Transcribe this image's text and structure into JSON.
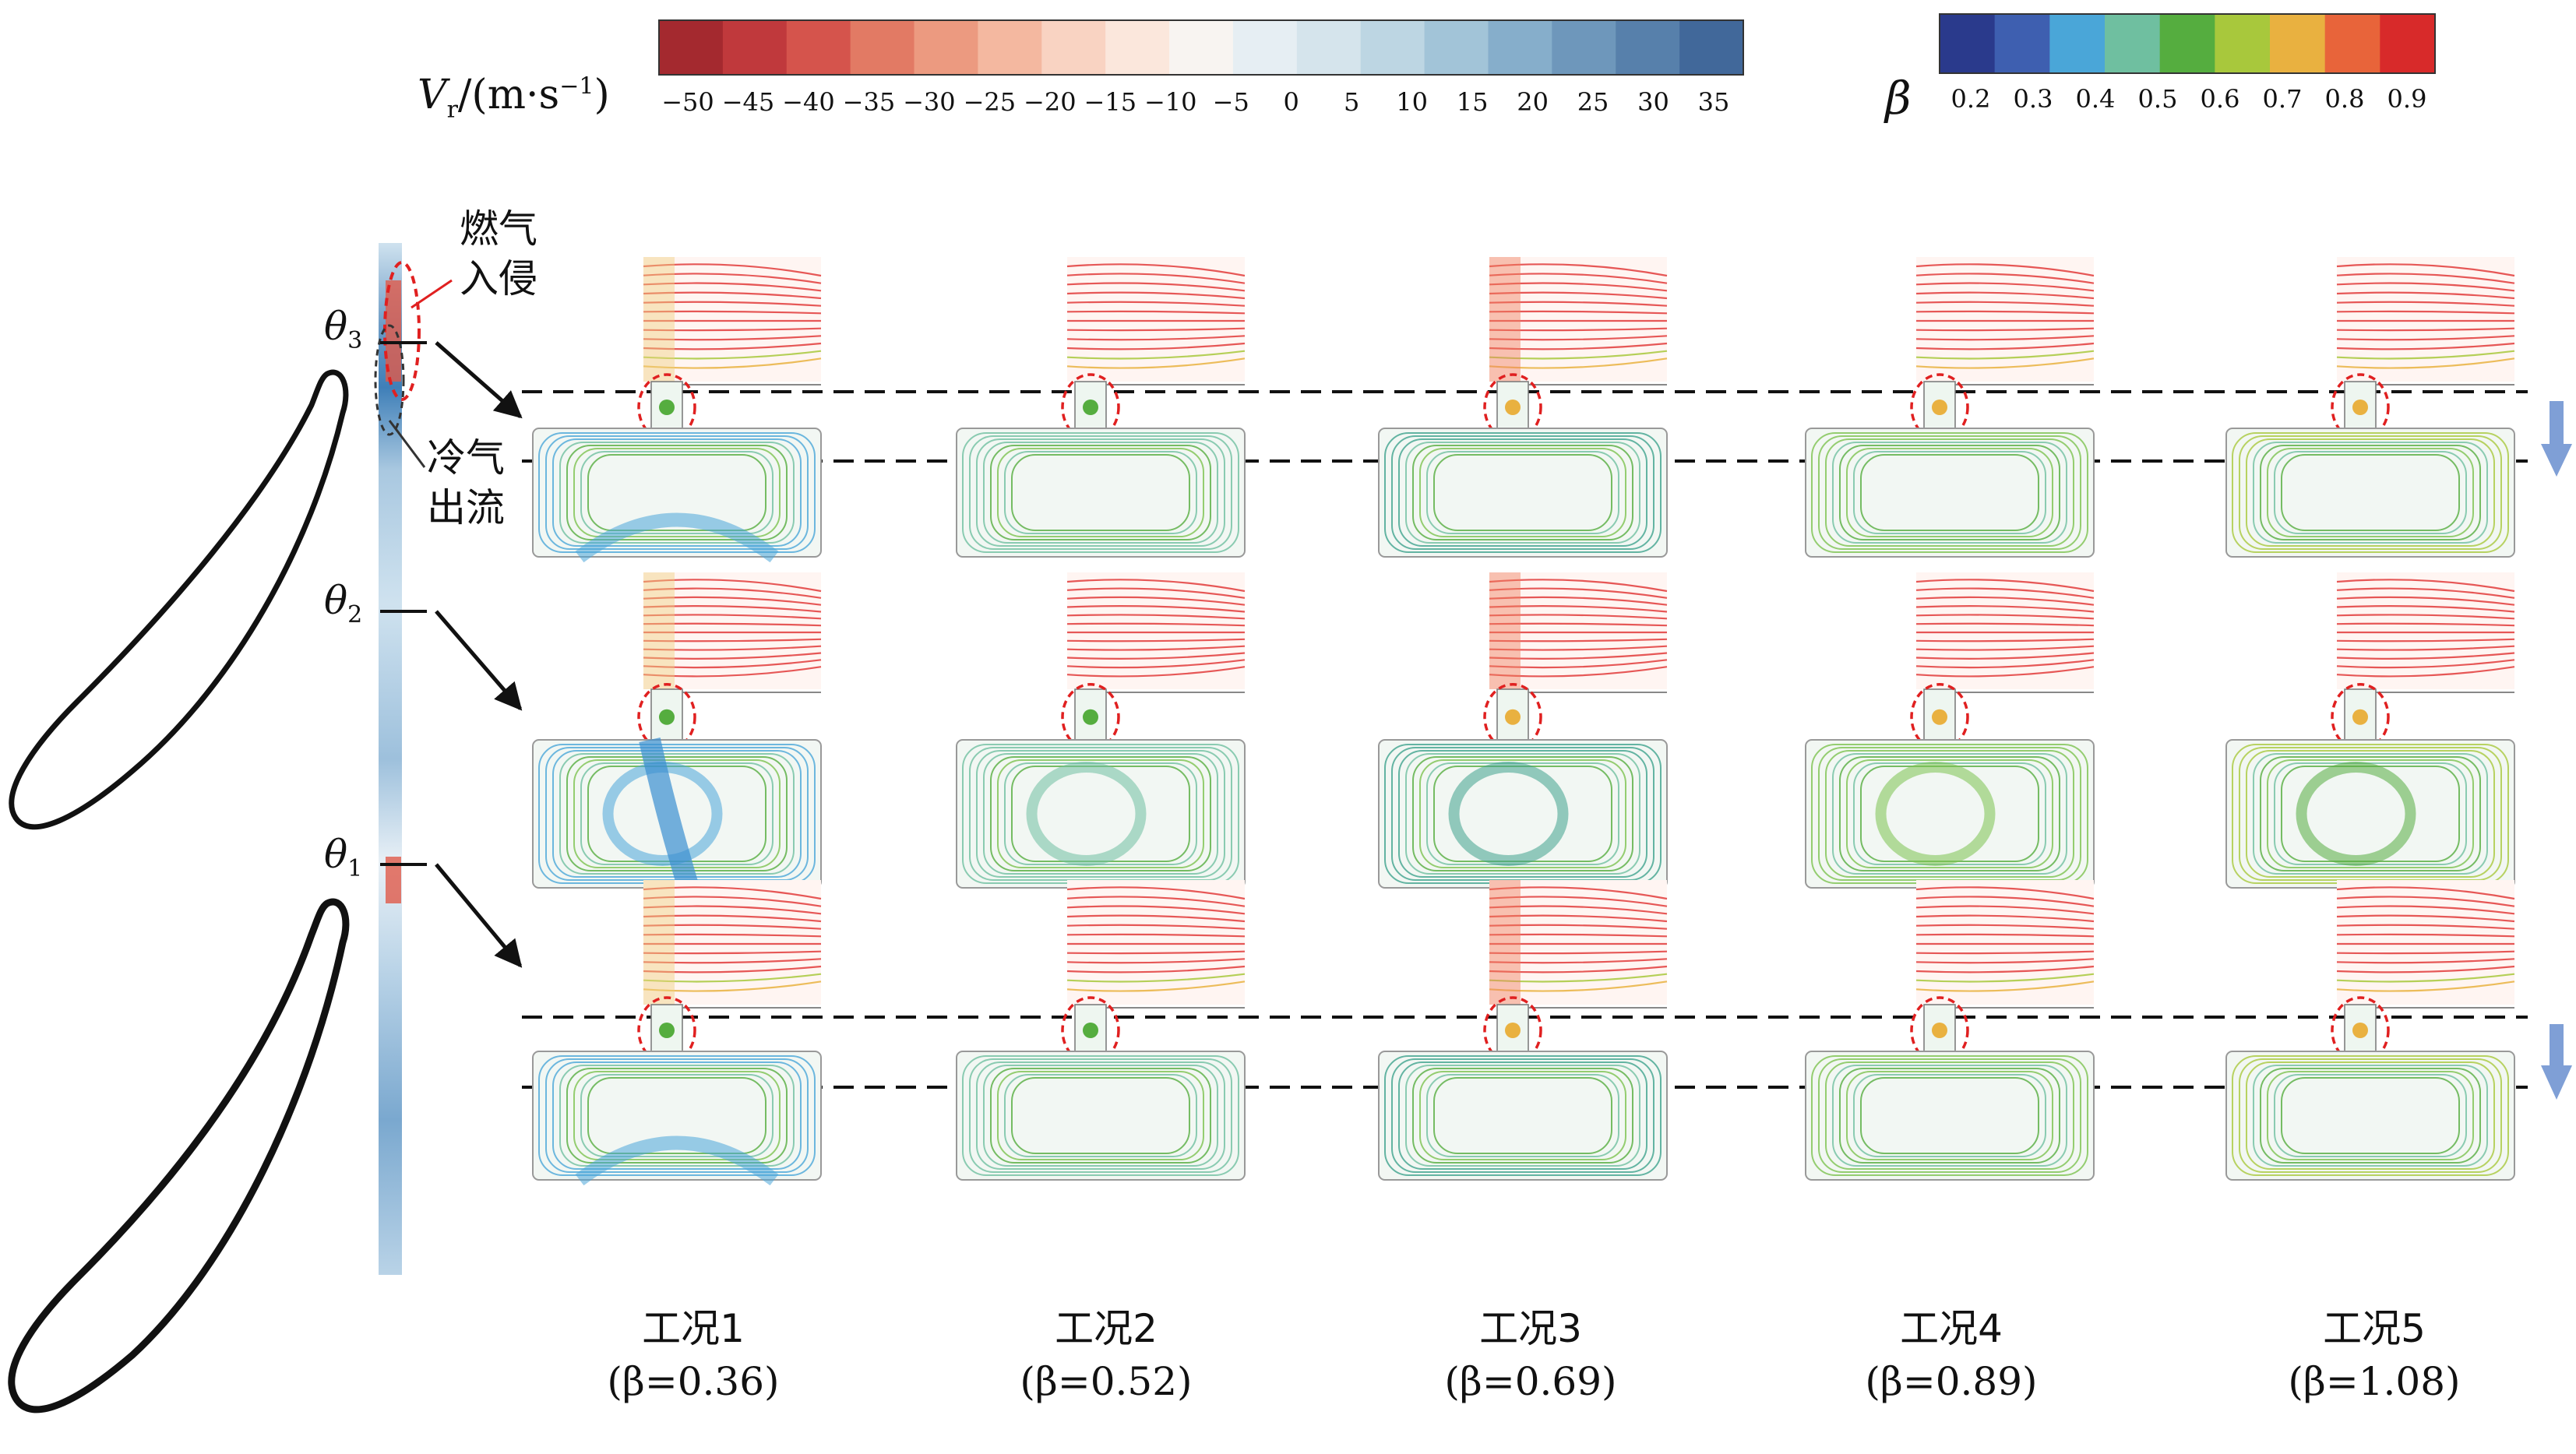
{
  "legend_vr": {
    "label_prefix": "V",
    "label_sub": "r",
    "label_suffix": "/(m·s",
    "label_exp": "−1",
    "label_close": ")",
    "ticks": [
      "−50",
      "−45",
      "−40",
      "−35",
      "−30",
      "−25",
      "−20",
      "−15",
      "−10",
      "−5",
      "0",
      "5",
      "10",
      "15",
      "20",
      "25",
      "30",
      "35"
    ],
    "colors": [
      "#a4292f",
      "#c0393c",
      "#d5544c",
      "#e27a64",
      "#ec9a80",
      "#f4b8a0",
      "#f9d3c2",
      "#fbe7dc",
      "#f8f4f1",
      "#e6eef3",
      "#d5e4ec",
      "#bdd6e3",
      "#a2c4d8",
      "#86aecb",
      "#6e97bb",
      "#5780ab",
      "#41689a"
    ]
  },
  "legend_beta": {
    "label": "β",
    "ticks": [
      "0.2",
      "0.3",
      "0.4",
      "0.5",
      "0.6",
      "0.7",
      "0.8",
      "0.9"
    ],
    "colors": [
      "#2a3a8c",
      "#3e5fb0",
      "#4aa6d8",
      "#6fbfa0",
      "#55ad3f",
      "#a8c83c",
      "#e9b140",
      "#e8643a",
      "#d82a2a"
    ]
  },
  "annotations": {
    "gas_ingestion": [
      "燃气",
      "入侵"
    ],
    "coolant_egress": [
      "冷气",
      "出流"
    ]
  },
  "theta_labels": [
    {
      "sym": "θ",
      "sub": "3"
    },
    {
      "sym": "θ",
      "sub": "2"
    },
    {
      "sym": "θ",
      "sub": "1"
    }
  ],
  "conditions": [
    {
      "name": "工况1",
      "beta": "(β=0.36)",
      "b": 0.36
    },
    {
      "name": "工况2",
      "beta": "(β=0.52)",
      "b": 0.52
    },
    {
      "name": "工况3",
      "beta": "(β=0.69)",
      "b": 0.69
    },
    {
      "name": "工况4",
      "beta": "(β=0.89)",
      "b": 0.89
    },
    {
      "name": "工况5",
      "beta": "(β=1.08)",
      "b": 1.08
    }
  ],
  "colors": {
    "gas_red": "#e23b3b",
    "guide_dash": "#111111",
    "blue_arrow": "#7f9fd6",
    "ellipse": "#e02020"
  }
}
